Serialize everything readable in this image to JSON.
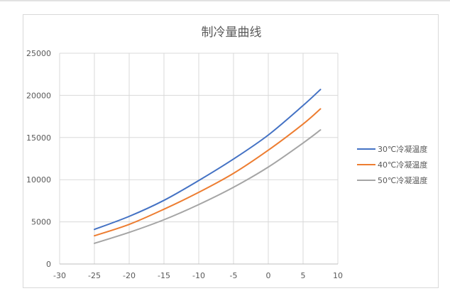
{
  "chart_data": {
    "type": "line",
    "title": "制冷量曲线",
    "xlim": [
      -30,
      10
    ],
    "ylim": [
      0,
      25000
    ],
    "x_ticks": [
      "-30",
      "-25",
      "-20",
      "-15",
      "-10",
      "-5",
      "0",
      "5",
      "10"
    ],
    "y_ticks": [
      "0",
      "5000",
      "10000",
      "15000",
      "20000",
      "25000"
    ],
    "grid": true,
    "legend_position": "right",
    "x": [
      -25,
      -20,
      -15,
      -10,
      -5,
      0,
      5,
      7.5
    ],
    "series": [
      {
        "name": "30℃冷凝温度",
        "color": "#4472c4",
        "values": [
          4100,
          5650,
          7550,
          9900,
          12450,
          15300,
          18800,
          20700
        ]
      },
      {
        "name": "40℃冷凝温度",
        "color": "#ed7d31",
        "values": [
          3350,
          4700,
          6500,
          8500,
          10750,
          13500,
          16600,
          18400
        ]
      },
      {
        "name": "50℃冷凝温度",
        "color": "#a5a5a5",
        "values": [
          2450,
          3750,
          5250,
          7050,
          9100,
          11500,
          14350,
          15900
        ]
      }
    ]
  }
}
